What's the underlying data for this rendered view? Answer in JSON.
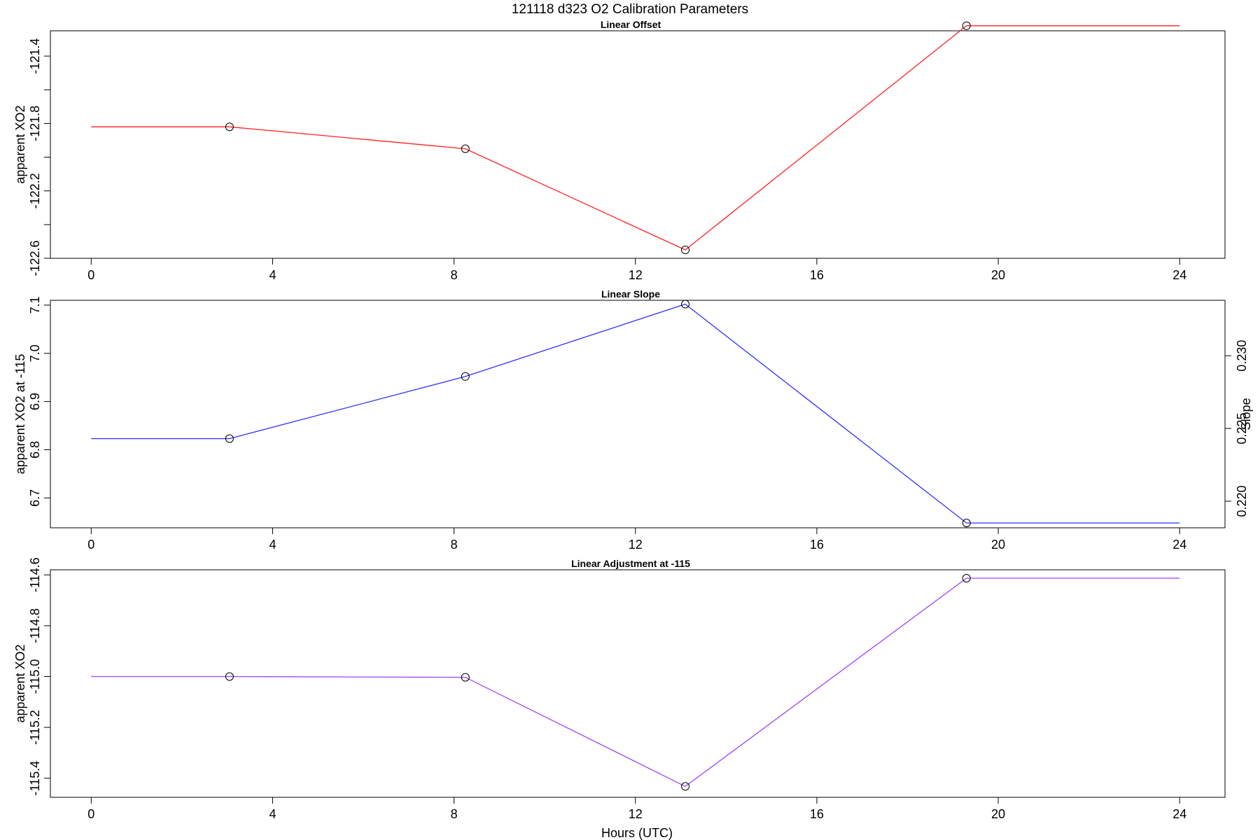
{
  "figure": {
    "title": "121118   d323   O2 Calibration Parameters",
    "xlabel": "Hours (UTC)"
  },
  "chart_data": [
    {
      "type": "line",
      "title": "Linear Offset",
      "xlabel": "",
      "ylabel": "apparent XO2",
      "xlim": [
        -0.9,
        25.0
      ],
      "ylim": [
        -122.6,
        -121.25
      ],
      "x_ticks": [
        0,
        4,
        8,
        12,
        16,
        20,
        24
      ],
      "y_ticks": [
        -122.6,
        -122.4,
        -122.2,
        -122.0,
        -121.8,
        -121.6,
        -121.4
      ],
      "y_tick_labels": [
        "-122.6",
        "",
        "-122.2",
        "",
        "-121.8",
        "",
        "-121.4"
      ],
      "color": "#ff2020",
      "series": [
        {
          "x": [
            0,
            3.05,
            8.25,
            13.1,
            19.3,
            24
          ],
          "y": [
            -121.82,
            -121.82,
            -121.95,
            -122.55,
            -121.22,
            -121.22
          ]
        }
      ],
      "markers_x": [
        3.05,
        8.25,
        13.1,
        19.3
      ],
      "markers_y": [
        -121.82,
        -121.95,
        -122.55,
        -121.22
      ],
      "grid": false
    },
    {
      "type": "line",
      "title": "Linear Slope",
      "xlabel": "",
      "ylabel": "apparent XO2 at -115",
      "y2label": "Slope",
      "xlim": [
        -0.9,
        25.0
      ],
      "ylim": [
        6.638,
        7.11
      ],
      "y2lim": [
        0.21817,
        0.23381
      ],
      "x_ticks": [
        0,
        4,
        8,
        12,
        16,
        20,
        24
      ],
      "y_ticks": [
        6.7,
        6.8,
        6.9,
        7.0,
        7.1
      ],
      "y_tick_labels": [
        "6.7",
        "6.8",
        "6.9",
        "7.0",
        "7.1"
      ],
      "y2_ticks": [
        0.22,
        0.225,
        0.23
      ],
      "y2_tick_labels": [
        "0.220",
        "0.225",
        "0.230"
      ],
      "color": "#3030ff",
      "series": [
        {
          "x": [
            0,
            3.05,
            8.25,
            13.1,
            19.3,
            24
          ],
          "y": [
            6.823,
            6.823,
            6.952,
            7.102,
            6.648,
            6.648
          ]
        }
      ],
      "markers_x": [
        3.05,
        8.25,
        13.1,
        19.3
      ],
      "markers_y": [
        6.823,
        6.952,
        7.102,
        6.648
      ],
      "grid": false
    },
    {
      "type": "line",
      "title": "Linear Adjustment at -115",
      "xlabel": "Hours (UTC)",
      "ylabel": "apparent XO2",
      "xlim": [
        -0.9,
        25.0
      ],
      "ylim": [
        -115.475,
        -114.58
      ],
      "x_ticks": [
        0,
        4,
        8,
        12,
        16,
        20,
        24
      ],
      "y_ticks": [
        -115.4,
        -115.2,
        -115.0,
        -114.8,
        -114.6
      ],
      "y_tick_labels": [
        "-115.4",
        "-115.2",
        "-115.0",
        "-114.8",
        "-114.6"
      ],
      "color": "#a040ff",
      "series": [
        {
          "x": [
            0,
            3.05,
            8.25,
            13.1,
            19.3,
            24
          ],
          "y": [
            -115.0,
            -115.0,
            -115.003,
            -115.432,
            -114.613,
            -114.613
          ]
        }
      ],
      "markers_x": [
        3.05,
        8.25,
        13.1,
        19.3
      ],
      "markers_y": [
        -115.0,
        -115.003,
        -115.432,
        -114.613
      ],
      "grid": false
    }
  ]
}
